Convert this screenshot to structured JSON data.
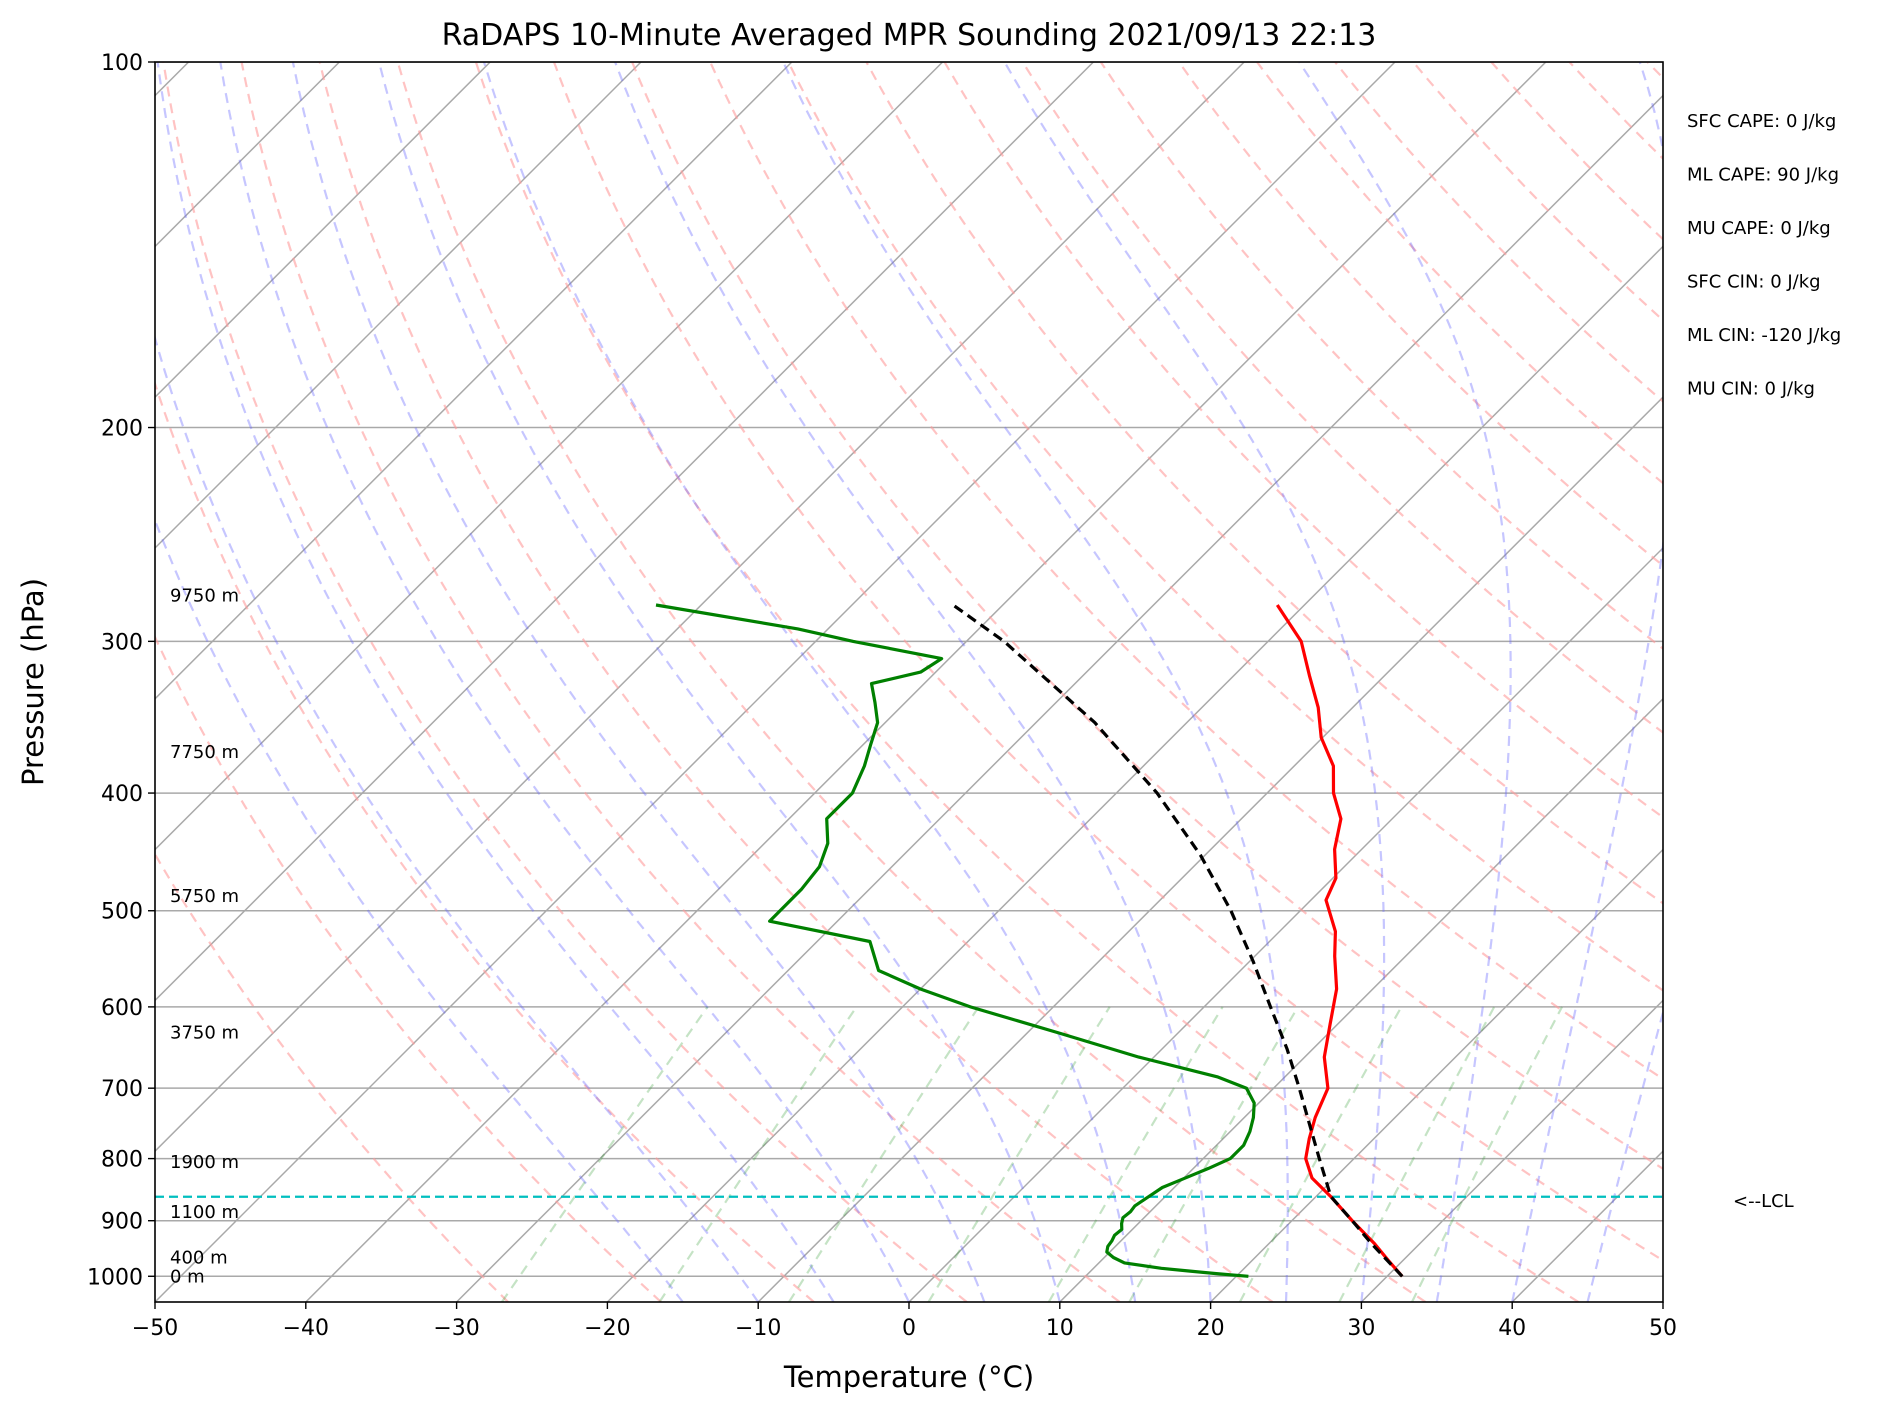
{
  "chart_data": {
    "type": "line",
    "subtype": "skew-t log-p sounding",
    "title": "RaDAPS 10-Minute Averaged MPR Sounding 2021/09/13 22:13",
    "xlabel": "Temperature (°C)",
    "ylabel": "Pressure (hPa)",
    "xlim": [
      -50,
      50
    ],
    "ylim": [
      1050,
      100
    ],
    "y_scale": "log",
    "x_ticks": [
      -50,
      -40,
      -30,
      -20,
      -10,
      0,
      10,
      20,
      30,
      40,
      50
    ],
    "x_tick_labels": [
      "−50",
      "−40",
      "−30",
      "−20",
      "−10",
      "0",
      "10",
      "20",
      "30",
      "40",
      "50"
    ],
    "y_ticks": [
      1000,
      900,
      800,
      700,
      600,
      500,
      400,
      300,
      200,
      100
    ],
    "y_tick_labels": [
      "1000",
      "900",
      "800",
      "700",
      "600",
      "500",
      "400",
      "300",
      "200",
      "100"
    ],
    "grid": true,
    "lcl_pressure": 860,
    "lcl_label": "<--LCL",
    "height_labels": [
      {
        "pressure": 1000,
        "text": "0 m"
      },
      {
        "pressure": 965,
        "text": "400 m"
      },
      {
        "pressure": 885,
        "text": "1100 m"
      },
      {
        "pressure": 805,
        "text": "1900 m"
      },
      {
        "pressure": 630,
        "text": "3750 m"
      },
      {
        "pressure": 486,
        "text": "5750 m"
      },
      {
        "pressure": 370,
        "text": "7750 m"
      },
      {
        "pressure": 275,
        "text": "9750 m"
      }
    ],
    "stats": [
      "SFC CAPE: 0 J/kg",
      "ML CAPE: 90 J/kg",
      "MU CAPE: 0 J/kg",
      "SFC CIN: 0 J/kg",
      "ML CIN: -120 J/kg",
      "MU CIN: 0 J/kg"
    ],
    "series": [
      {
        "key": "temperature",
        "color": "#ff0000",
        "pressure": [
          1000,
          970,
          940,
          900,
          860,
          830,
          800,
          770,
          740,
          700,
          660,
          620,
          580,
          545,
          520,
          490,
          470,
          445,
          420,
          400,
          380,
          360,
          340,
          320,
          300,
          280
        ],
        "values": [
          31,
          29,
          27,
          24,
          21,
          18.5,
          16.8,
          15.7,
          14.7,
          13.6,
          11.3,
          9.5,
          7.6,
          5.3,
          3.7,
          1.0,
          0.2,
          -1.8,
          -3.4,
          -5.6,
          -7.4,
          -10.1,
          -12.3,
          -15.0,
          -17.8,
          -21.8
        ]
      },
      {
        "key": "dewpoint",
        "color": "#008000",
        "pressure": [
          1000,
          995,
          990,
          985,
          975,
          965,
          955,
          945,
          935,
          925,
          915,
          905,
          895,
          885,
          875,
          865,
          855,
          845,
          835,
          825,
          815,
          800,
          780,
          760,
          740,
          720,
          700,
          685,
          660,
          630,
          600,
          580,
          560,
          530,
          510,
          480,
          460,
          440,
          420,
          400,
          380,
          365,
          350,
          337,
          325,
          318,
          310,
          300,
          293,
          280
        ],
        "values": [
          20.8,
          18.5,
          16.5,
          14.5,
          11.7,
          10.6,
          9.8,
          9.5,
          9.4,
          9.2,
          9.3,
          8.9,
          8.6,
          8.7,
          8.6,
          8.8,
          9.0,
          9.2,
          9.8,
          10.4,
          11.0,
          11.8,
          11.8,
          11.3,
          10.6,
          9.7,
          8.2,
          5.5,
          -1.0,
          -8.0,
          -15.5,
          -20.0,
          -24.0,
          -26.5,
          -34.5,
          -34.5,
          -34.8,
          -35.8,
          -37.5,
          -37.5,
          -38.5,
          -39.5,
          -40.5,
          -42.0,
          -43.5,
          -41.0,
          -40.5,
          -47.5,
          -52.0,
          -63.0
        ]
      },
      {
        "key": "parcel",
        "color": "#000000",
        "dashed": true,
        "pressure": [
          1000,
          940,
          900,
          860,
          800,
          750,
          700,
          650,
          600,
          550,
          500,
          450,
          400,
          350,
          300,
          280
        ],
        "values": [
          31,
          26.8,
          24,
          21,
          17.7,
          14.8,
          11.7,
          8.3,
          4.4,
          0.2,
          -4.6,
          -10.3,
          -17.3,
          -26.1,
          -37.5,
          -43.3
        ]
      }
    ]
  }
}
